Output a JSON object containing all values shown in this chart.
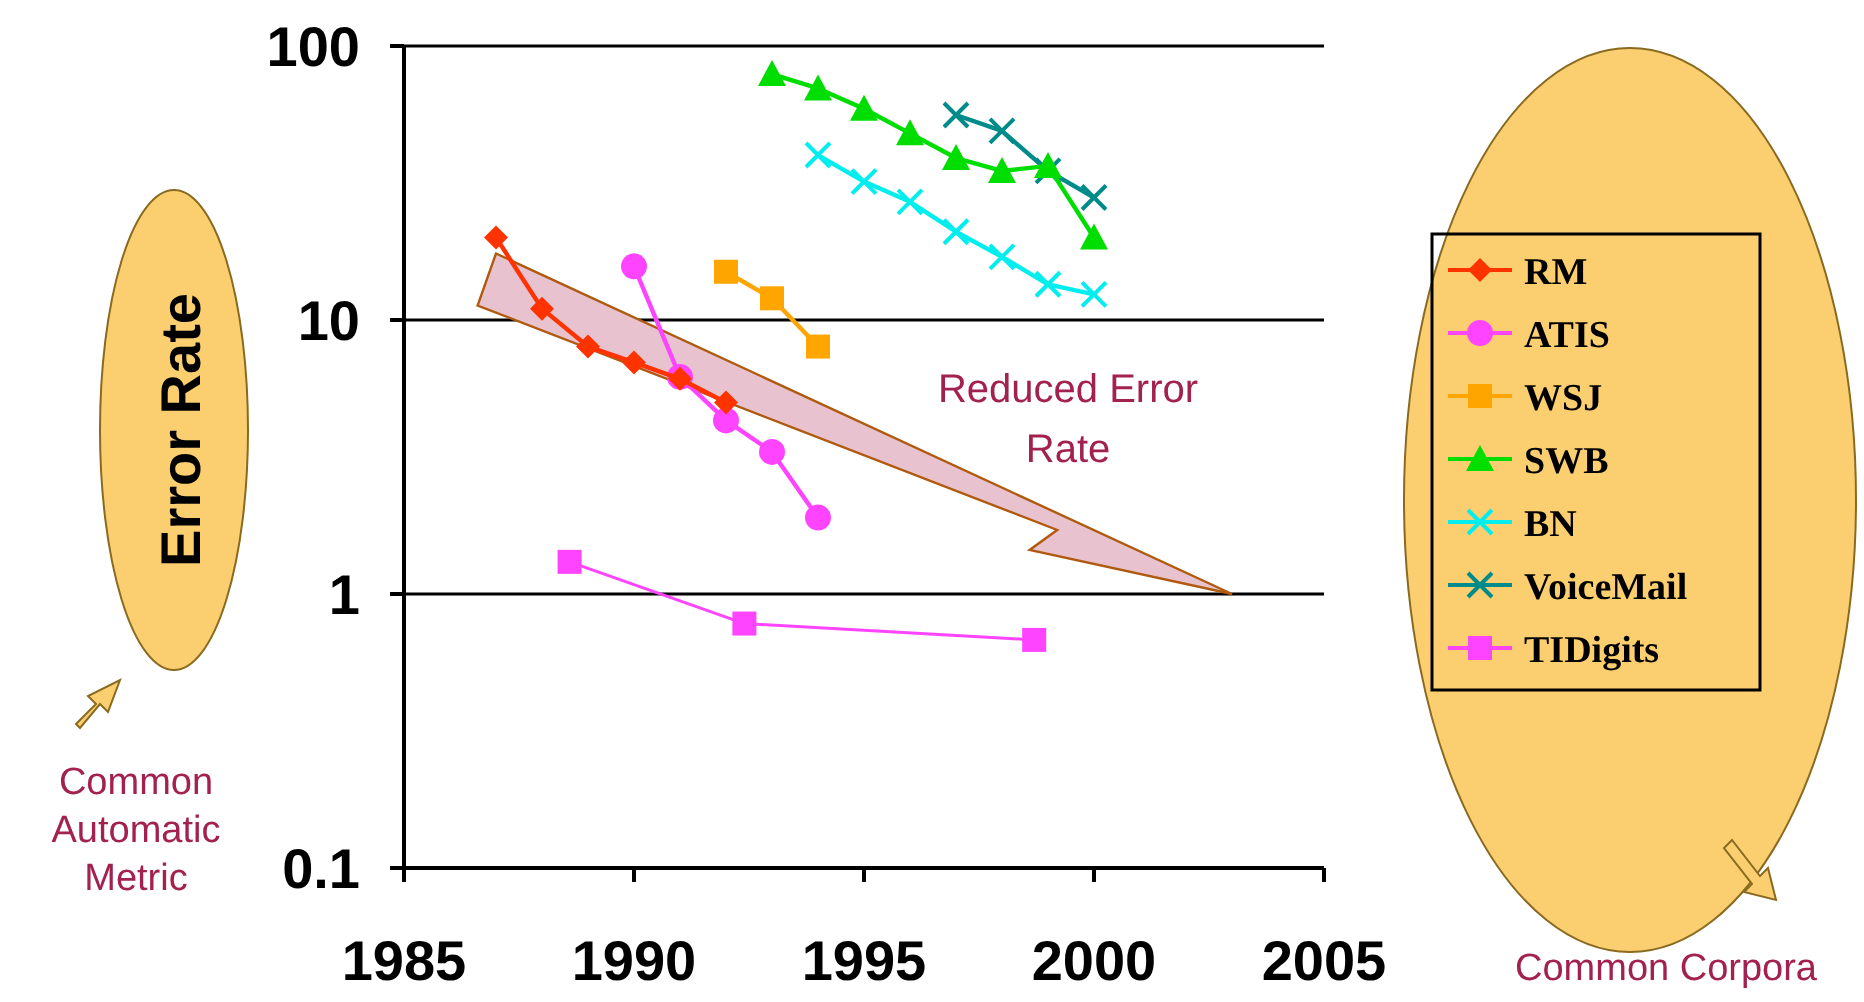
{
  "chart_data": {
    "type": "line",
    "ylabel": "Error Rate",
    "log": "y",
    "xlim": [
      1985,
      2005
    ],
    "xticks": [
      1985,
      1990,
      1995,
      2000,
      2005
    ],
    "ylim": [
      0.1,
      100
    ],
    "yticks": [
      0.1,
      1,
      10,
      100
    ],
    "grid": "y",
    "legend": "right",
    "annotations": [
      "Reduced Error Rate",
      "Common Automatic Metric",
      "Common Corpora"
    ],
    "series": [
      {
        "name": "RM",
        "color": "#ff3300",
        "marker": "diamond",
        "x": [
          1987,
          1988,
          1989,
          1990,
          1991,
          1992
        ],
        "values": [
          20,
          11,
          8,
          7,
          6.1,
          5
        ]
      },
      {
        "name": "ATIS",
        "color": "#ff44ff",
        "marker": "circle",
        "x": [
          1990,
          1991,
          1992,
          1993,
          1994
        ],
        "values": [
          15.7,
          6.2,
          4.3,
          3.3,
          1.9
        ]
      },
      {
        "name": "WSJ",
        "color": "#ffa500",
        "marker": "square",
        "x": [
          1992,
          1993,
          1994
        ],
        "values": [
          15,
          12,
          8
        ]
      },
      {
        "name": "SWB",
        "color": "#00dd00",
        "marker": "triangle",
        "x": [
          1993,
          1994,
          1995,
          1996,
          1997,
          1998,
          1999,
          2000
        ],
        "values": [
          79,
          70,
          59,
          48,
          39,
          35,
          36.5,
          20
        ]
      },
      {
        "name": "BN",
        "color": "#00eeee",
        "marker": "cross",
        "x": [
          1994,
          1995,
          1996,
          1997,
          1998,
          1999,
          2000
        ],
        "values": [
          40,
          32,
          27,
          21,
          17,
          13.5,
          12.4
        ]
      },
      {
        "name": "VoiceMail",
        "color": "#008b8b",
        "marker": "cross",
        "x": [
          1997,
          1998,
          1999,
          2000
        ],
        "values": [
          56,
          49,
          35,
          28
        ]
      },
      {
        "name": "TIDigits",
        "color": "#ff44ff",
        "marker": "square",
        "x": [
          1988.6,
          1992.4,
          1998.7
        ],
        "values": [
          1.31,
          0.78,
          0.68
        ]
      }
    ]
  }
}
